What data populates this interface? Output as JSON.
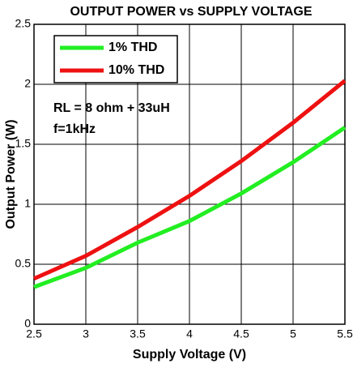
{
  "chart_data": {
    "type": "line",
    "title": "OUTPUT POWER vs SUPPLY VOLTAGE",
    "xlabel": "Supply Voltage (V)",
    "ylabel": "Output Power (W)",
    "annotations": [
      "RL = 8 ohm + 33uH",
      "f=1kHz"
    ],
    "x": [
      2.5,
      3,
      3.5,
      4,
      4.5,
      5,
      5.5
    ],
    "series": [
      {
        "name": "1% THD",
        "color": "#22ee22",
        "values": [
          0.31,
          0.47,
          0.68,
          0.86,
          1.09,
          1.35,
          1.64
        ]
      },
      {
        "name": "10% THD",
        "color": "#ee1111",
        "values": [
          0.38,
          0.57,
          0.81,
          1.07,
          1.36,
          1.68,
          2.03
        ]
      }
    ],
    "xlim": [
      2.5,
      5.5
    ],
    "xticks": [
      2.5,
      3,
      3.5,
      4,
      4.5,
      5,
      5.5
    ],
    "ylim": [
      0,
      2.5
    ],
    "yticks": [
      0,
      0.5,
      1,
      1.5,
      2,
      2.5
    ],
    "grid": true,
    "legend": "upper left"
  }
}
